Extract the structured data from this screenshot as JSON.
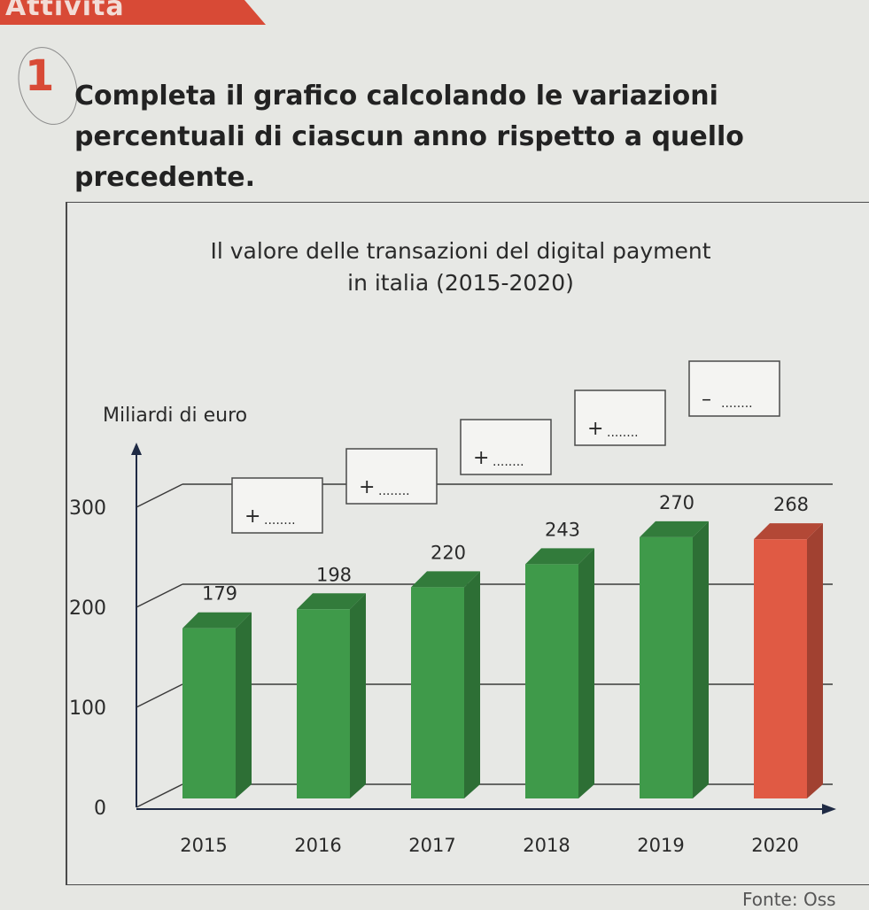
{
  "header": {
    "label": "Attività"
  },
  "exercise": {
    "number": "1",
    "text": "Completa il grafico calcolando le variazioni percentuali di ciascun anno rispetto a quello precedente."
  },
  "source": "Fonte: Oss",
  "chart_data": {
    "type": "bar",
    "title": "Il valore delle transazioni del digital payment",
    "subtitle": "in italia (2015-2020)",
    "ylabel": "Miliardi di euro",
    "xlabel": "",
    "categories": [
      "2015",
      "2016",
      "2017",
      "2018",
      "2019",
      "2020"
    ],
    "values": [
      179,
      198,
      220,
      243,
      270,
      268
    ],
    "value_labels": [
      "179",
      "198",
      "220",
      "243",
      "270",
      "268"
    ],
    "yticks": [
      "0",
      "100",
      "200",
      "300"
    ],
    "ylim": [
      0,
      300
    ],
    "grid": true,
    "bar_colors": [
      "#3f9a4a",
      "#3f9a4a",
      "#3f9a4a",
      "#3f9a4a",
      "#3f9a4a",
      "#e05a44"
    ],
    "change_boxes": [
      {
        "sign": "+",
        "blank": "........"
      },
      {
        "sign": "+",
        "blank": "........"
      },
      {
        "sign": "+",
        "blank": "........"
      },
      {
        "sign": "+",
        "blank": "........"
      },
      {
        "sign": "–",
        "blank": "........"
      }
    ]
  }
}
